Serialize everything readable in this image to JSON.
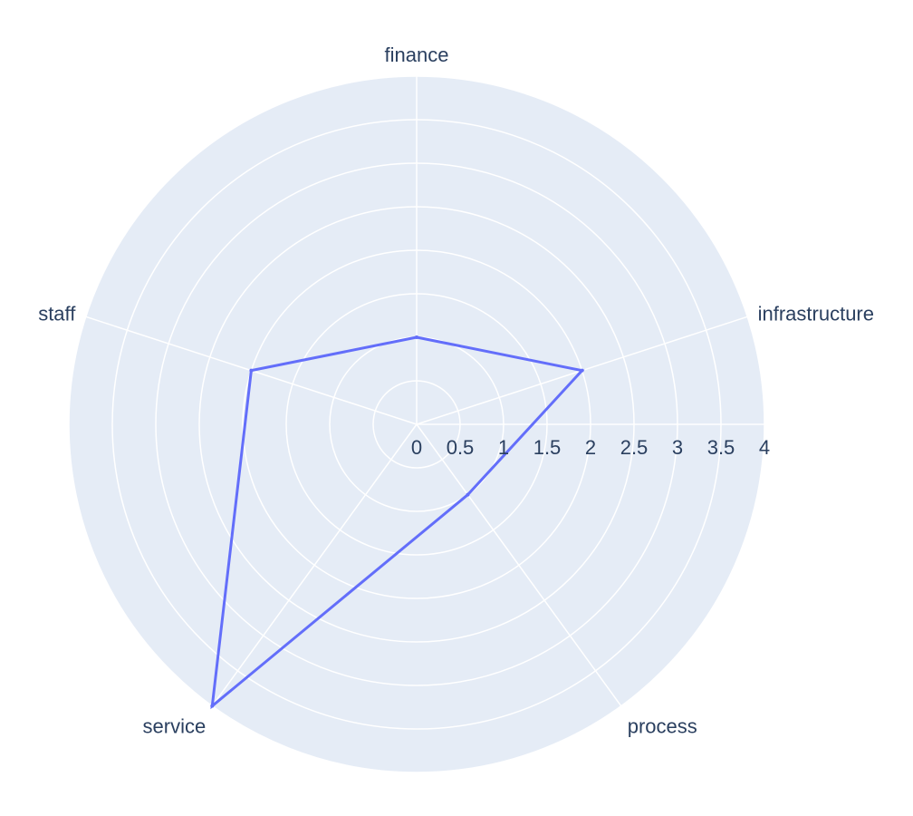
{
  "chart_data": {
    "type": "radar",
    "title": "",
    "categories": [
      "finance",
      "infrastructure",
      "process",
      "service",
      "staff"
    ],
    "series": [
      {
        "values": [
          1,
          2,
          1,
          4,
          2
        ],
        "color": "#636efa"
      }
    ],
    "radial_range": [
      0,
      4
    ],
    "radial_ticks": [
      "0",
      "0.5",
      "1",
      "1.5",
      "2",
      "2.5",
      "3",
      "3.5",
      "4"
    ],
    "radial_tick_values": [
      0,
      0.5,
      1,
      1.5,
      2,
      2.5,
      3,
      3.5,
      4
    ],
    "grid": true,
    "background_color": "#e5ecf6",
    "grid_color": "#ffffff",
    "text_color": "#2a3f5f"
  }
}
